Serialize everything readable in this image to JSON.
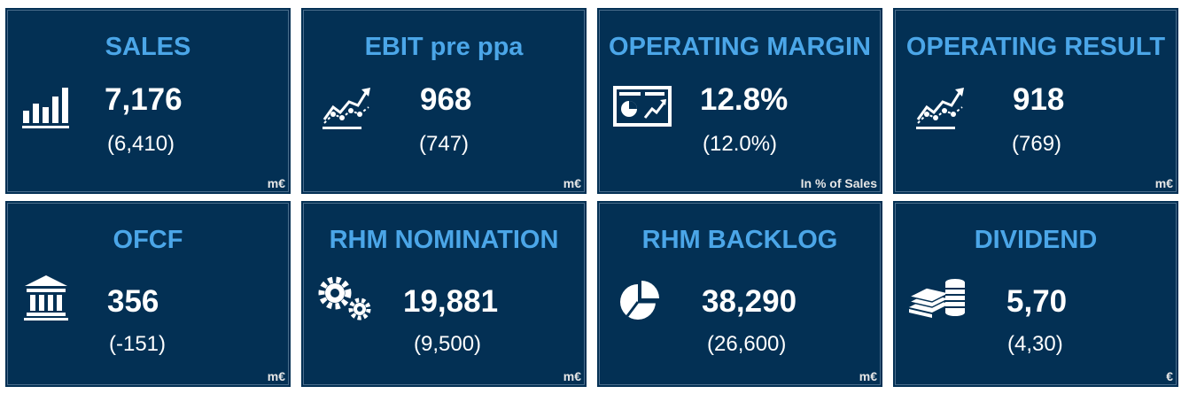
{
  "tiles": [
    {
      "title": "SALES",
      "value": "7,176",
      "previous": "(6,410)",
      "unit": "m€",
      "icon": "bar-chart-icon"
    },
    {
      "title": "EBIT pre ppa",
      "value": "968",
      "previous": "(747)",
      "unit": "m€",
      "icon": "trend-line-icon"
    },
    {
      "title": "OPERATING MARGIN",
      "value": "12.8%",
      "previous": "(12.0%)",
      "unit": "In % of Sales",
      "icon": "report-icon"
    },
    {
      "title": "OPERATING RESULT",
      "value": "918",
      "previous": "(769)",
      "unit": "m€",
      "icon": "trend-line-icon"
    },
    {
      "title": "OFCF",
      "value": "356",
      "previous": "(-151)",
      "unit": "m€",
      "icon": "bank-icon"
    },
    {
      "title": "RHM NOMINATION",
      "value": "19,881",
      "previous": "(9,500)",
      "unit": "m€",
      "icon": "gears-icon"
    },
    {
      "title": "RHM BACKLOG",
      "value": "38,290",
      "previous": "(26,600)",
      "unit": "m€",
      "icon": "pie-chart-icon"
    },
    {
      "title": "DIVIDEND",
      "value": "5,70",
      "previous": "(4,30)",
      "unit": "€",
      "icon": "cash-stack-icon"
    }
  ],
  "colors": {
    "tile_bg": "#033054",
    "title": "#4ba6e8",
    "text": "#ffffff"
  }
}
